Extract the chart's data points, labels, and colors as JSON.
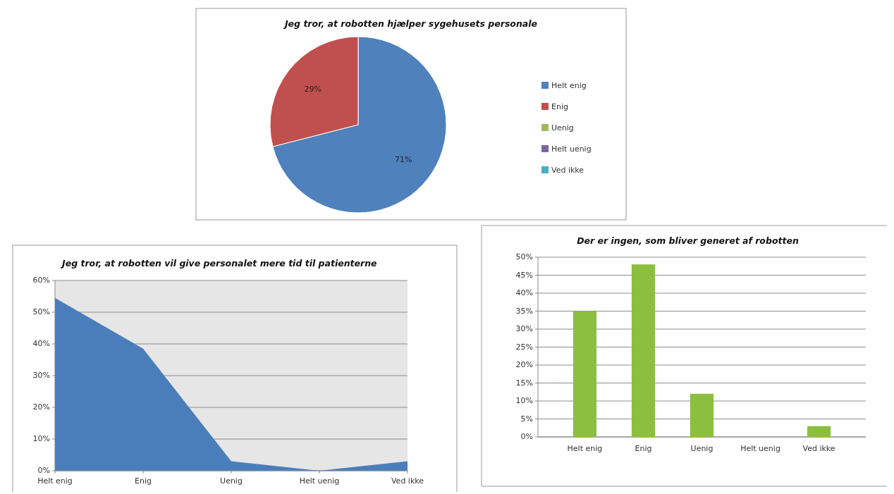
{
  "chart_data": [
    {
      "type": "pie",
      "title": "Jeg tror, at robotten hjælper sygehusets personale",
      "categories": [
        "Helt enig",
        "Enig",
        "Uenig",
        "Helt uenig",
        "Ved ikke"
      ],
      "values": [
        71,
        29,
        0,
        0,
        0
      ],
      "colors": [
        "#4f81bd",
        "#c0504d",
        "#9bbb59",
        "#8064a2",
        "#4bacc6"
      ],
      "value_labels": [
        "71%",
        "29%",
        null,
        null,
        null
      ],
      "legend": "right"
    },
    {
      "type": "area",
      "title": "Jeg tror, at robotten vil give personalet mere tid til patienterne",
      "categories": [
        "Helt enig",
        "Enig",
        "Uenig",
        "Helt uenig",
        "Ved ikke"
      ],
      "values": [
        54.5,
        38.5,
        3,
        0,
        3
      ],
      "color": "#4a7ebb",
      "ylim": [
        0,
        60
      ],
      "yticks": [
        {
          "value": 0,
          "label": "0%"
        },
        {
          "value": 10,
          "label": "10%"
        },
        {
          "value": 20,
          "label": "20%"
        },
        {
          "value": 30,
          "label": "30%"
        },
        {
          "value": 40,
          "label": "40%"
        },
        {
          "value": 50,
          "label": "50%"
        },
        {
          "value": 60,
          "label": "60%"
        }
      ],
      "grid": "y"
    },
    {
      "type": "bar",
      "title": "Der er ingen, som bliver generet af robotten",
      "categories": [
        "Helt enig",
        "Enig",
        "Uenig",
        "Helt uenig",
        "Ved ikke"
      ],
      "values": [
        35,
        48,
        12,
        0,
        3
      ],
      "color": "#8cbf3f",
      "ylim": [
        0,
        50
      ],
      "yticks": [
        {
          "value": 0,
          "label": "0%"
        },
        {
          "value": 5,
          "label": "5%"
        },
        {
          "value": 10,
          "label": "10%"
        },
        {
          "value": 15,
          "label": "15%"
        },
        {
          "value": 20,
          "label": "20%"
        },
        {
          "value": 25,
          "label": "25%"
        },
        {
          "value": 30,
          "label": "30%"
        },
        {
          "value": 35,
          "label": "35%"
        },
        {
          "value": 40,
          "label": "40%"
        },
        {
          "value": 45,
          "label": "45%"
        },
        {
          "value": 50,
          "label": "50%"
        }
      ],
      "grid": "y"
    }
  ]
}
